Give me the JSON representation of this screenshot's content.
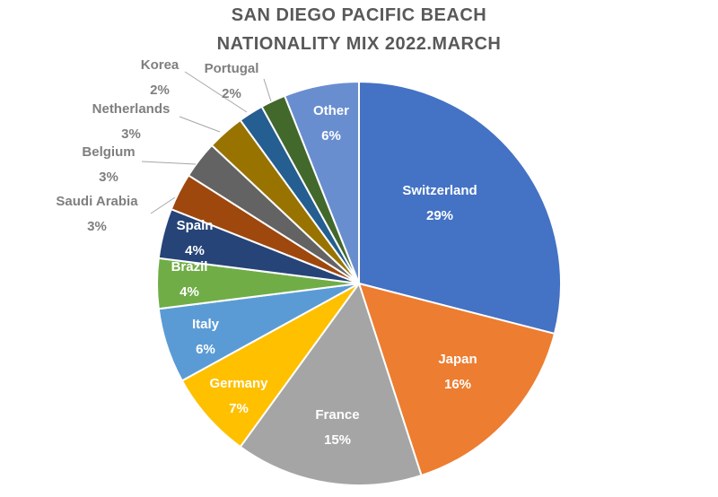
{
  "chart_data": {
    "type": "pie",
    "title_lines": [
      "SAN DIEGO PACIFIC BEACH",
      "NATIONALITY MIX 2022.MARCH"
    ],
    "start_angle_deg": 0,
    "direction": "clockwise",
    "slices": [
      {
        "name": "Switzerland",
        "value": 29,
        "label": "29%",
        "color": "#4472C4"
      },
      {
        "name": "Japan",
        "value": 16,
        "label": "16%",
        "color": "#ED7D31"
      },
      {
        "name": "France",
        "value": 15,
        "label": "15%",
        "color": "#A5A5A5"
      },
      {
        "name": "Germany",
        "value": 7,
        "label": "7%",
        "color": "#FFC000"
      },
      {
        "name": "Italy",
        "value": 6,
        "label": "6%",
        "color": "#5B9BD5"
      },
      {
        "name": "Brazil",
        "value": 4,
        "label": "4%",
        "color": "#70AD47"
      },
      {
        "name": "Spain",
        "value": 4,
        "label": "4%",
        "color": "#264478"
      },
      {
        "name": "Saudi Arabia",
        "value": 3,
        "label": "3%",
        "color": "#9E480E"
      },
      {
        "name": "Belgium",
        "value": 3,
        "label": "3%",
        "color": "#636363"
      },
      {
        "name": "Netherlands",
        "value": 3,
        "label": "3%",
        "color": "#997300"
      },
      {
        "name": "Korea",
        "value": 2,
        "label": "2%",
        "color": "#255E91"
      },
      {
        "name": "Portugal",
        "value": 2,
        "label": "2%",
        "color": "#43682B"
      },
      {
        "name": "Other",
        "value": 6,
        "label": "6%",
        "color": "#698ED0"
      }
    ]
  }
}
